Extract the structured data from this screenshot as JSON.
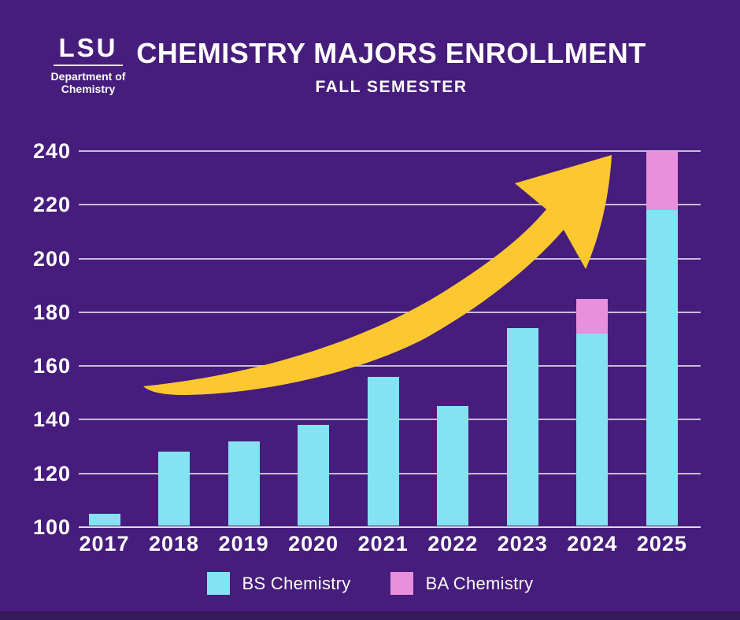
{
  "header": {
    "logo": {
      "acronym": "LSU",
      "dept_line1": "Department of",
      "dept_line2": "Chemistry"
    },
    "title": "CHEMISTRY MAJORS ENROLLMENT",
    "subtitle": "FALL SEMESTER"
  },
  "colors": {
    "background": "#461D7C",
    "bar_bs": "#85E2F2",
    "bar_ba": "#E990DD",
    "arrow_gold": "#FDC82F",
    "gridline": "#DED9E8",
    "text": "#FFFFFF",
    "footer_strip": "#38195E"
  },
  "legend": {
    "items": [
      {
        "label": "BS Chemistry",
        "color": "#85E2F2"
      },
      {
        "label": "BA Chemistry",
        "color": "#E990DD"
      }
    ]
  },
  "chart_data": {
    "type": "bar",
    "stacked": true,
    "title": "CHEMISTRY MAJORS ENROLLMENT",
    "subtitle": "FALL SEMESTER",
    "xlabel": "",
    "ylabel": "",
    "categories": [
      "2017",
      "2018",
      "2019",
      "2020",
      "2021",
      "2022",
      "2023",
      "2024",
      "2025"
    ],
    "series": [
      {
        "name": "BS Chemistry",
        "color": "#85E2F2",
        "values": [
          105,
          128,
          132,
          138,
          156,
          145,
          174,
          172,
          218
        ]
      },
      {
        "name": "BA Chemistry",
        "color": "#E990DD",
        "values": [
          0,
          0,
          0,
          0,
          0,
          0,
          0,
          13,
          22
        ]
      }
    ],
    "totals": [
      105,
      128,
      132,
      138,
      156,
      145,
      174,
      185,
      240
    ],
    "ylim": [
      100,
      240
    ],
    "yticks": [
      100,
      120,
      140,
      160,
      180,
      200,
      220,
      240
    ],
    "grid": "horizontal",
    "legend_position": "bottom",
    "annotation": "yellow upward trend arrow"
  }
}
